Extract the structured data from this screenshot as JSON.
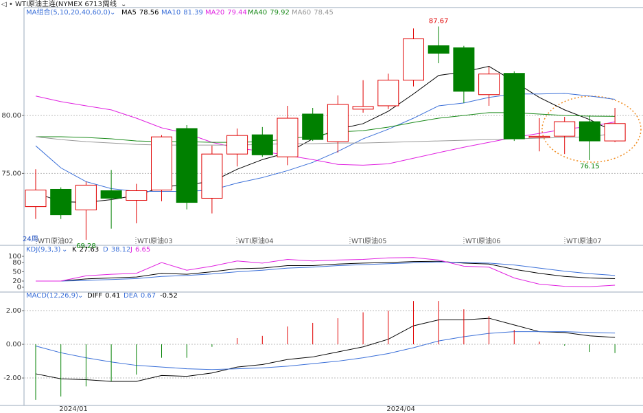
{
  "header": {
    "symbol": "WTI原油主连(NYMEX 6713)",
    "period": "周线"
  },
  "chart_data": [
    {
      "type": "candlestick",
      "title": "MA组合(5,10,20,40,60,0)",
      "period_label": "24周",
      "contract_labels": [
        "WTI原油02",
        "WTI原油03",
        "WTI原油04",
        "WTI原油05",
        "WTI原油06",
        "WTI原油07"
      ],
      "open": [
        72.14,
        73.63,
        71.85,
        73.51,
        72.68,
        73.57,
        78.87,
        72.86,
        76.67,
        78.33,
        76.43,
        80.12,
        77.74,
        80.54,
        80.83,
        83.04,
        86.01,
        85.83,
        81.79,
        83.63,
        78.1,
        78.21,
        79.46,
        77.8
      ],
      "close": [
        73.57,
        71.43,
        73.99,
        72.86,
        73.51,
        78.15,
        72.5,
        76.67,
        78.27,
        76.6,
        79.76,
        77.92,
        80.95,
        80.77,
        83.04,
        86.6,
        85.36,
        82.08,
        83.57,
        77.98,
        78.2,
        79.46,
        77.8,
        79.3
      ],
      "high": [
        75.36,
        73.8,
        74.29,
        75.3,
        74.1,
        78.3,
        79.17,
        77.4,
        78.87,
        79.0,
        80.83,
        80.65,
        81.73,
        83.04,
        83.6,
        87.5,
        87.67,
        86.0,
        84.2,
        83.8,
        79.76,
        79.88,
        80.0,
        80.65
      ],
      "low": [
        71.07,
        71.07,
        69.28,
        70.24,
        70.7,
        72.6,
        71.9,
        71.55,
        75.6,
        76.43,
        75.71,
        77.8,
        76.79,
        80.24,
        80.54,
        82.5,
        84.5,
        81.07,
        80.83,
        77.8,
        76.9,
        76.67,
        76.15,
        77.7
      ],
      "high_labels": [
        null,
        null,
        null,
        null,
        null,
        null,
        null,
        null,
        null,
        null,
        null,
        null,
        null,
        null,
        null,
        null,
        "87.67",
        null,
        null,
        null,
        null,
        null,
        null,
        null
      ],
      "low_labels": [
        null,
        null,
        "69.28",
        null,
        null,
        null,
        null,
        null,
        null,
        null,
        null,
        null,
        null,
        null,
        null,
        null,
        null,
        null,
        null,
        null,
        null,
        null,
        "76.15",
        null
      ],
      "up_color": "#e00000",
      "down_color": "#008000",
      "series": [
        {
          "name": "MA5",
          "color": "#000000",
          "values": [
            73.33,
            72.56,
            72.5,
            72.74,
            73.1,
            73.81,
            74.05,
            74.29,
            75.36,
            76.19,
            76.79,
            77.98,
            78.81,
            79.29,
            80.36,
            81.85,
            83.45,
            83.75,
            84.23,
            82.92,
            81.55,
            80.48,
            79.64,
            78.56
          ]
        },
        {
          "name": "MA10",
          "color": "#3a6fd8",
          "values": [
            77.38,
            75.48,
            74.29,
            73.69,
            73.45,
            73.45,
            73.45,
            73.57,
            74.17,
            74.64,
            75.24,
            75.95,
            76.9,
            77.98,
            78.81,
            79.76,
            80.83,
            81.07,
            81.55,
            81.85,
            81.85,
            81.9,
            81.67,
            81.39
          ]
        },
        {
          "name": "MA20",
          "color": "#e020e0",
          "values": [
            81.67,
            81.19,
            80.83,
            80.48,
            79.76,
            78.93,
            78.45,
            77.68,
            77.2,
            76.9,
            76.55,
            76.19,
            75.78,
            75.71,
            75.83,
            76.31,
            76.79,
            77.26,
            77.68,
            78.1,
            78.45,
            78.81,
            79.05,
            79.44
          ]
        },
        {
          "name": "MA40",
          "color": "#1a8a1a",
          "values": [
            78.16,
            78.16,
            78.1,
            77.98,
            77.8,
            77.74,
            77.74,
            77.68,
            77.68,
            77.74,
            77.98,
            78.21,
            78.57,
            78.69,
            78.99,
            79.4,
            79.76,
            80.0,
            80.24,
            80.24,
            80.12,
            80.0,
            79.94,
            79.92
          ]
        },
        {
          "name": "MA60",
          "color": "#999999",
          "values": [
            78.16,
            77.92,
            77.74,
            77.62,
            77.5,
            77.44,
            77.44,
            77.44,
            77.44,
            77.5,
            77.56,
            77.56,
            77.62,
            77.62,
            77.68,
            77.74,
            77.8,
            77.86,
            77.92,
            77.98,
            78.04,
            78.1,
            78.16,
            78.45
          ]
        }
      ],
      "ylim": [
        68.8,
        89.3
      ],
      "yticks": [
        {
          "value": 80,
          "label": "80.00"
        },
        {
          "value": 75,
          "label": "75.00"
        }
      ],
      "grid": true
    },
    {
      "type": "line",
      "title": "KDJ(9,3,3)",
      "series": [
        {
          "name": "K",
          "color": "#000000",
          "values": [
            20,
            20,
            27,
            30,
            33,
            45,
            42,
            50,
            60,
            62,
            70,
            70,
            75,
            78,
            80,
            83,
            84,
            78,
            75,
            58,
            45,
            35,
            30,
            27.63
          ]
        },
        {
          "name": "D",
          "color": "#3a6fd8",
          "values": [
            20,
            20,
            22,
            25,
            28,
            35,
            38,
            43,
            50,
            55,
            62,
            65,
            70,
            73,
            76,
            79,
            82,
            80,
            78,
            72,
            62,
            52,
            44,
            38.12
          ]
        },
        {
          "name": "J",
          "color": "#e020e0",
          "values": [
            20,
            20,
            37,
            42,
            45,
            80,
            55,
            68,
            85,
            78,
            90,
            85,
            88,
            90,
            95,
            96,
            88,
            68,
            65,
            30,
            10,
            3,
            2,
            6.65
          ]
        }
      ],
      "ylim": [
        -15.6,
        117.8
      ],
      "yticks": [
        100,
        80,
        50,
        20,
        0
      ],
      "grid": false
    },
    {
      "type": "macd",
      "title": "MACD(12,26,9)",
      "series": [
        {
          "name": "DIFF",
          "color": "#000000",
          "values": [
            -1.75,
            -2.05,
            -2.1,
            -2.2,
            -2.2,
            -1.85,
            -1.9,
            -1.7,
            -1.35,
            -1.2,
            -0.9,
            -0.75,
            -0.45,
            -0.15,
            0.3,
            1.1,
            1.45,
            1.45,
            1.55,
            1.15,
            0.75,
            0.7,
            0.5,
            0.41
          ]
        },
        {
          "name": "DEA",
          "color": "#3a6fd8",
          "values": [
            -0.1,
            -0.5,
            -0.8,
            -1.05,
            -1.25,
            -1.35,
            -1.45,
            -1.5,
            -1.45,
            -1.4,
            -1.3,
            -1.15,
            -1.0,
            -0.8,
            -0.55,
            -0.2,
            0.2,
            0.45,
            0.65,
            0.75,
            0.75,
            0.75,
            0.7,
            0.67
          ]
        }
      ],
      "histogram": [
        -3.3,
        -3.1,
        -2.5,
        -2.2,
        -1.8,
        -0.8,
        -0.8,
        -0.15,
        0.37,
        0.5,
        1.06,
        1.27,
        1.55,
        1.9,
        2.0,
        2.57,
        2.57,
        2.08,
        1.67,
        0.86,
        0.16,
        -0.08,
        -0.45,
        -0.52
      ],
      "up_color": "#e00000",
      "down_color": "#008000",
      "x_labels": [
        "2024/01",
        "2024/04"
      ],
      "ylim": [
        -3.63,
        2.9
      ],
      "yticks": [
        {
          "value": 2,
          "label": "2.00"
        },
        {
          "value": 0,
          "label": "0.00"
        },
        {
          "value": -2,
          "label": "-2.00"
        }
      ],
      "grid": true
    }
  ]
}
